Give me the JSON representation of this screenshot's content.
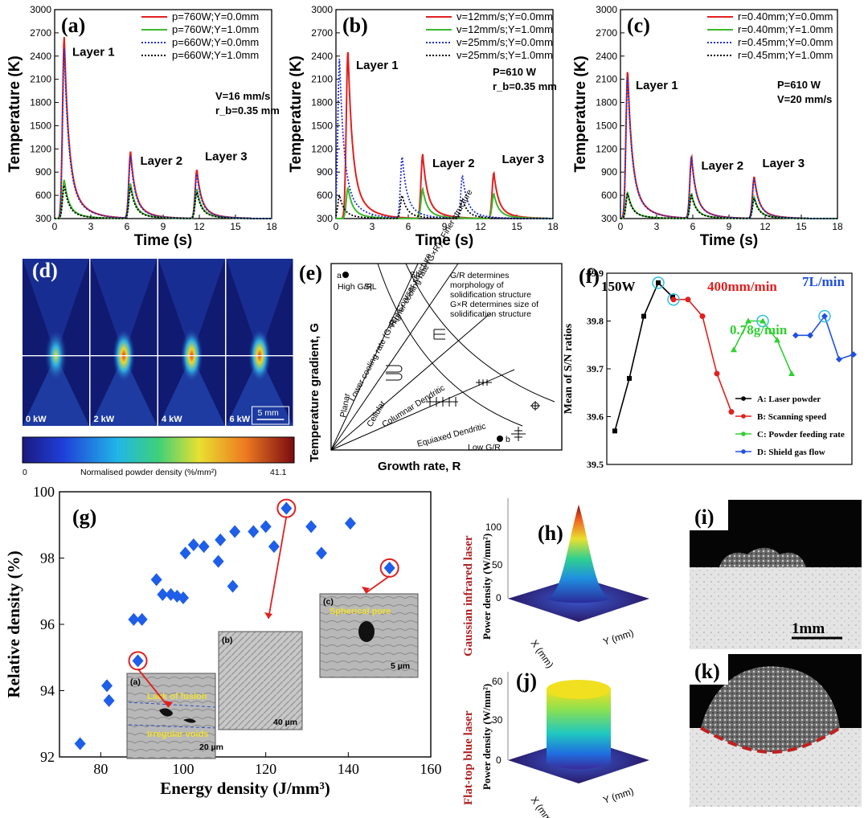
{
  "colors": {
    "red": "#e02020",
    "green": "#3cb82e",
    "blue": "#2030d0",
    "black": "#000000",
    "diamond": "#1e5ee8"
  },
  "panels": {
    "a": {
      "label": "(a)",
      "layers": [
        "Layer 1",
        "Layer 2",
        "Layer 3"
      ],
      "params": [
        "V=16 mm/s",
        "r_b=0.35 mm"
      ]
    },
    "b": {
      "label": "(b)",
      "layers": [
        "Layer 1",
        "Layer 2",
        "Layer 3"
      ],
      "params": [
        "P=610 W",
        "r_b=0.35 mm"
      ]
    },
    "c": {
      "label": "(c)",
      "layers": [
        "Layer 1",
        "Layer 2",
        "Layer 3"
      ],
      "params": [
        "P=610 W",
        "V=20 mm/s"
      ]
    },
    "d": {
      "label": "(d)",
      "powers": [
        "0 kW",
        "2 kW",
        "4 kW",
        "6 kW"
      ],
      "scale_bar": "5 mm",
      "colorbar_min": "0",
      "colorbar_max": "41.1",
      "colorbar_label": "Normalised powder density (%/mm²)"
    },
    "e": {
      "label": "(e)",
      "xlabel": "Growth rate, R",
      "ylabel": "Temperature gradient, G",
      "texts": [
        "G/R determines",
        "morphology of",
        "solidification structure",
        "G×R determines size of",
        "solidification structure"
      ],
      "regions": [
        "Planar",
        "Cellular",
        "Columnar Dendritic",
        "Equiaxed Dendritic"
      ],
      "high": "High G/R",
      "low": "Low G/R",
      "pa": "a",
      "pb": "b",
      "fine": "Higher cooling rate (G×R)↑ Finer structure",
      "coarse": "Lower cooling rate (G×R)↓ Coarser structure",
      "sl": "S|L"
    },
    "f": {
      "label": "(f)",
      "annotations": [
        "150W",
        "400mm/min",
        "0.78g/min",
        "7L/min"
      ],
      "legend": [
        "A: Laser powder",
        "B: Scanning speed",
        "C: Powder feeding rate",
        "D: Shield gas flow"
      ]
    },
    "g": {
      "label": "(g)",
      "insets": {
        "a": "(a)",
        "b": "(b)",
        "c": "(c)",
        "lack": "Lack of fusion",
        "irregular": "Irregular voids",
        "spherical": "Spherical pore",
        "sa": "20 µm",
        "sb": "40 µm",
        "sc": "5 µm"
      }
    },
    "h": {
      "label": "(h)",
      "title": "Gaussian infrared laser",
      "zlabel": "Power density (W/mm²)",
      "xlab": "X (mm)",
      "ylab": "Y (mm)",
      "zt": [
        "0",
        "50",
        "100"
      ]
    },
    "i": {
      "label": "(i)",
      "scale": "1mm"
    },
    "j": {
      "label": "(j)",
      "title": "Flat-top blue laser",
      "zlabel": "Power density (W/mm²)",
      "xlab": "X (mm)",
      "ylab": "Y (mm)",
      "zt": [
        "0",
        "30",
        "60"
      ]
    },
    "k": {
      "label": "(k)"
    }
  },
  "chart_data": [
    {
      "type": "line",
      "id": "a",
      "xlabel": "Time (s)",
      "ylabel": "Temperature (K)",
      "xlim": [
        0,
        18
      ],
      "ylim": [
        300,
        3000
      ],
      "xticks": [
        0,
        3,
        6,
        9,
        12,
        15,
        18
      ],
      "yticks": [
        300,
        600,
        900,
        1200,
        1500,
        1800,
        2100,
        2400,
        2700,
        3000
      ],
      "series": [
        {
          "name": "p=760W;Y=0.0mm",
          "style": "solid",
          "color": "red",
          "peaks": [
            [
              0.8,
              2650
            ],
            [
              6.3,
              1160
            ],
            [
              11.8,
              930
            ]
          ]
        },
        {
          "name": "p=760W;Y=1.0mm",
          "style": "solid",
          "color": "green",
          "peaks": [
            [
              0.8,
              800
            ],
            [
              6.3,
              750
            ],
            [
              11.8,
              680
            ]
          ]
        },
        {
          "name": "p=660W;Y=0.0mm",
          "style": "dotted",
          "color": "blue",
          "peaks": [
            [
              0.8,
              2500
            ],
            [
              6.3,
              1100
            ],
            [
              11.8,
              880
            ]
          ]
        },
        {
          "name": "p=660W;Y=1.0mm",
          "style": "dotted",
          "color": "black",
          "peaks": [
            [
              0.8,
              730
            ],
            [
              6.3,
              700
            ],
            [
              11.8,
              640
            ]
          ]
        }
      ]
    },
    {
      "type": "line",
      "id": "b",
      "xlabel": "Time (s)",
      "ylabel": "Temperature (K)",
      "xlim": [
        0,
        18
      ],
      "ylim": [
        300,
        3000
      ],
      "xticks": [
        0,
        3,
        6,
        9,
        12,
        15,
        18
      ],
      "yticks": [
        300,
        600,
        900,
        1200,
        1500,
        1800,
        2100,
        2400,
        2700,
        3000
      ],
      "series": [
        {
          "name": "v=12mm/s;Y=0.0mm",
          "style": "solid",
          "color": "red",
          "peaks": [
            [
              1.0,
              2480
            ],
            [
              7.2,
              1130
            ],
            [
              13.1,
              890
            ]
          ]
        },
        {
          "name": "v=12mm/s;Y=1.0mm",
          "style": "solid",
          "color": "green",
          "peaks": [
            [
              1.0,
              700
            ],
            [
              7.2,
              680
            ],
            [
              13.1,
              620
            ]
          ]
        },
        {
          "name": "v=25mm/s;Y=0.0mm",
          "style": "dotted",
          "color": "blue",
          "peaks": [
            [
              0.3,
              2370
            ],
            [
              5.5,
              1100
            ],
            [
              10.5,
              860
            ]
          ]
        },
        {
          "name": "v=25mm/s;Y=1.0mm",
          "style": "dotted",
          "color": "black",
          "peaks": [
            [
              0.3,
              600
            ],
            [
              5.5,
              600
            ],
            [
              10.5,
              560
            ]
          ]
        }
      ]
    },
    {
      "type": "line",
      "id": "c",
      "xlabel": "Time (s)",
      "ylabel": "Temperature (K)",
      "xlim": [
        0,
        18
      ],
      "ylim": [
        300,
        3000
      ],
      "xticks": [
        0,
        3,
        6,
        9,
        12,
        15,
        18
      ],
      "yticks": [
        300,
        600,
        900,
        1200,
        1500,
        1800,
        2100,
        2400,
        2700,
        3000
      ],
      "series": [
        {
          "name": "r=0.40mm;Y=0.0mm",
          "style": "solid",
          "color": "red",
          "peaks": [
            [
              0.6,
              2220
            ],
            [
              5.9,
              1100
            ],
            [
              11.1,
              840
            ]
          ]
        },
        {
          "name": "r=0.40mm;Y=1.0mm",
          "style": "solid",
          "color": "green",
          "peaks": [
            [
              0.6,
              640
            ],
            [
              5.9,
              620
            ],
            [
              11.1,
              580
            ]
          ]
        },
        {
          "name": "r=0.45mm;Y=0.0mm",
          "style": "dotted",
          "color": "blue",
          "peaks": [
            [
              0.6,
              2150
            ],
            [
              5.9,
              1080
            ],
            [
              11.1,
              820
            ]
          ]
        },
        {
          "name": "r=0.45mm;Y=1.0mm",
          "style": "dotted",
          "color": "black",
          "peaks": [
            [
              0.6,
              620
            ],
            [
              5.9,
              600
            ],
            [
              11.1,
              560
            ]
          ]
        }
      ]
    },
    {
      "type": "line",
      "id": "f",
      "ylabel": "Mean of S/N ratios",
      "ylim": [
        39.5,
        39.9
      ],
      "yticks": [
        39.5,
        39.6,
        39.7,
        39.8,
        39.9
      ],
      "series": [
        {
          "name": "A: Laser powder",
          "color": "#000000",
          "marker": "square",
          "values": [
            39.57,
            39.68,
            39.81,
            39.88,
            39.85
          ]
        },
        {
          "name": "B: Scanning speed",
          "color": "#e02020",
          "marker": "circle",
          "values": [
            39.845,
            39.845,
            39.81,
            39.69,
            39.61
          ]
        },
        {
          "name": "C: Powder feeding rate",
          "color": "#30d030",
          "marker": "triangle",
          "values": [
            39.74,
            39.8,
            39.8,
            39.76,
            39.69
          ]
        },
        {
          "name": "D: Shield gas flow",
          "color": "#2050e0",
          "marker": "diamond",
          "values": [
            39.77,
            39.77,
            39.81,
            39.72,
            39.73
          ]
        }
      ]
    },
    {
      "type": "scatter",
      "id": "g",
      "xlabel": "Energy density (J/mm³)",
      "ylabel": "Relative density (%)",
      "xlim": [
        70,
        160
      ],
      "ylim": [
        92,
        100
      ],
      "xticks": [
        80,
        100,
        120,
        140,
        160
      ],
      "yticks": [
        92,
        94,
        96,
        98,
        100
      ],
      "points": [
        [
          75,
          92.4
        ],
        [
          81.5,
          94.15
        ],
        [
          82,
          93.7
        ],
        [
          88,
          96.15
        ],
        [
          89,
          94.9
        ],
        [
          90,
          96.15
        ],
        [
          93.5,
          97.35
        ],
        [
          95,
          96.9
        ],
        [
          97,
          96.9
        ],
        [
          98.5,
          96.85
        ],
        [
          100,
          96.8
        ],
        [
          100.5,
          98.15
        ],
        [
          102.5,
          98.4
        ],
        [
          105,
          98.35
        ],
        [
          108.5,
          97.9
        ],
        [
          109,
          98.55
        ],
        [
          112,
          97.15
        ],
        [
          112.5,
          98.8
        ],
        [
          117,
          98.8
        ],
        [
          120,
          98.95
        ],
        [
          122,
          98.35
        ],
        [
          125,
          99.5
        ],
        [
          131,
          98.95
        ],
        [
          133.5,
          98.15
        ],
        [
          140.5,
          99.05
        ],
        [
          150,
          97.7
        ]
      ],
      "highlighted": [
        [
          89,
          94.9
        ],
        [
          125,
          99.5
        ],
        [
          150,
          97.7
        ]
      ]
    }
  ]
}
